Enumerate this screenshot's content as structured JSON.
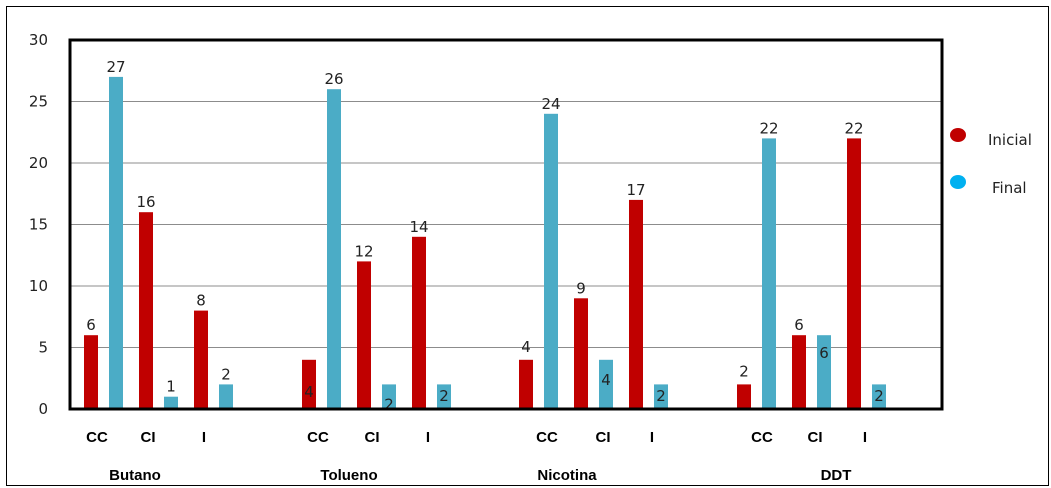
{
  "chart_data": {
    "type": "bar",
    "title": "",
    "xlabel": "",
    "ylabel": "",
    "ylim": [
      0,
      30
    ],
    "yticks": [
      0,
      5,
      10,
      15,
      20,
      25,
      30
    ],
    "grid": true,
    "legend_position": "right",
    "groups": [
      {
        "name": "Butano",
        "categories": [
          "CC",
          "CI",
          "I"
        ]
      },
      {
        "name": "Tolueno",
        "categories": [
          "CC",
          "CI",
          "I"
        ]
      },
      {
        "name": "Nicotina",
        "categories": [
          "CC",
          "CI",
          "I"
        ]
      },
      {
        "name": "DDT",
        "categories": [
          "CC",
          "CI",
          "I"
        ]
      }
    ],
    "series": [
      {
        "name": "Inicial",
        "color": "#c00000",
        "values": [
          6,
          16,
          8,
          4,
          12,
          14,
          4,
          9,
          17,
          2,
          6,
          22
        ]
      },
      {
        "name": "Final",
        "color": "#4bacc6",
        "values": [
          27,
          1,
          2,
          26,
          2,
          2,
          24,
          4,
          2,
          22,
          6,
          2
        ]
      }
    ]
  }
}
